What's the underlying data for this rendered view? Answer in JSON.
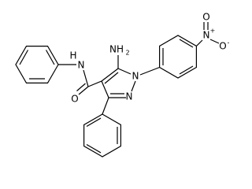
{
  "atoms": {
    "amide_h": "H",
    "amide_n": "N",
    "carbonyl_o": "O",
    "amino": "NH",
    "amino_sub": "2",
    "n1": "N",
    "n2": "N",
    "nitro_n": "N",
    "nitro_charge": "+",
    "nitro_o_top": "O",
    "nitro_o_charge": "-",
    "nitro_o_right": "O"
  }
}
